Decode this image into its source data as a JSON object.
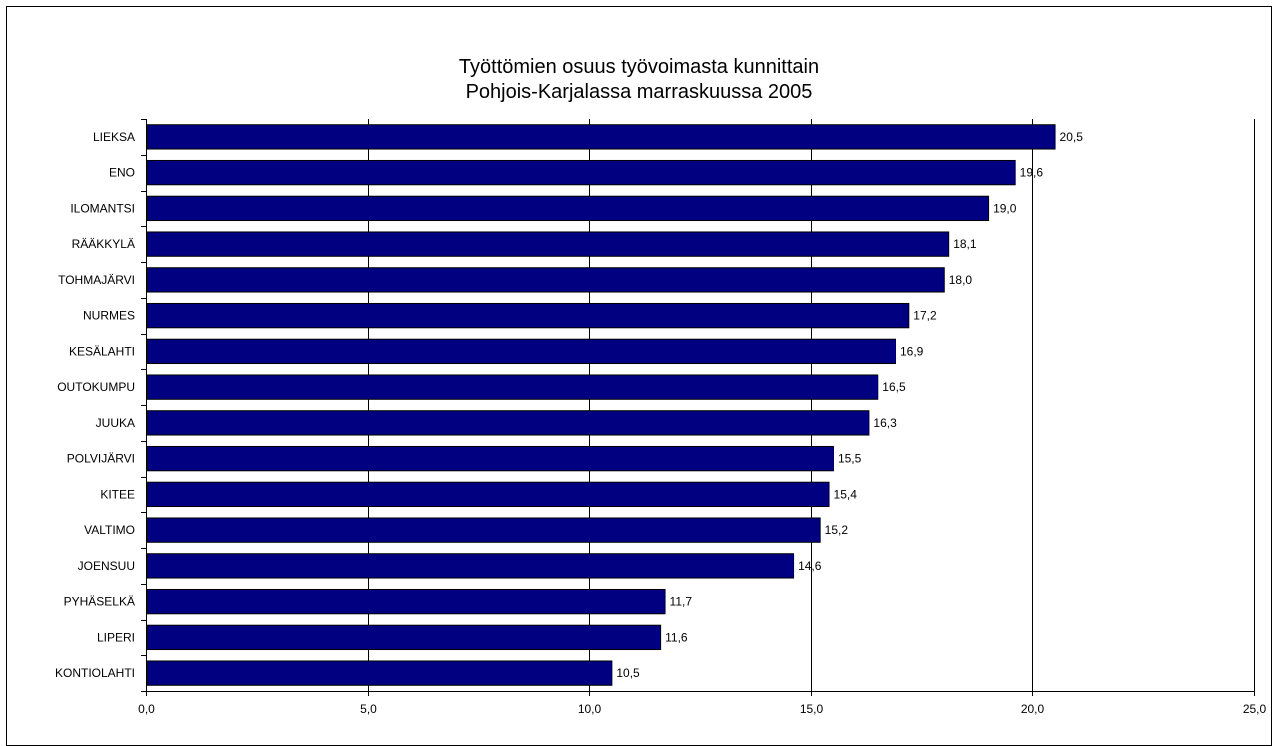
{
  "chart_data": {
    "type": "bar",
    "orientation": "horizontal",
    "title": "Työttömien osuus työvoimasta kunnittain",
    "subtitle": "Pohjois-Karjalassa marraskuussa 2005",
    "categories": [
      "LIEKSA",
      "ENO",
      "ILOMANTSI",
      "RÄÄKKYLÄ",
      "TOHMAJÄRVI",
      "NURMES",
      "KESÄLAHTI",
      "OUTOKUMPU",
      "JUUKA",
      "POLVIJÄRVI",
      "KITEE",
      "VALTIMO",
      "JOENSUU",
      "PYHÄSELKÄ",
      "LIPERI",
      "KONTIOLAHTI"
    ],
    "values": [
      20.5,
      19.6,
      19.0,
      18.1,
      18.0,
      17.2,
      16.9,
      16.5,
      16.3,
      15.5,
      15.4,
      15.2,
      14.6,
      11.7,
      11.6,
      10.5
    ],
    "value_labels": [
      "20,5",
      "19,6",
      "19,0",
      "18,1",
      "18,0",
      "17,2",
      "16,9",
      "16,5",
      "16,3",
      "15,5",
      "15,4",
      "15,2",
      "14,6",
      "11,7",
      "11,6",
      "10,5"
    ],
    "xlim": [
      0,
      25
    ],
    "x_ticks": [
      0,
      5,
      10,
      15,
      20,
      25
    ],
    "x_tick_labels": [
      "0,0",
      "5,0",
      "10,0",
      "15,0",
      "20,0",
      "25,0"
    ],
    "xlabel": "",
    "ylabel": "",
    "grid": "vertical",
    "legend": "none",
    "bar_color": "#000080"
  }
}
